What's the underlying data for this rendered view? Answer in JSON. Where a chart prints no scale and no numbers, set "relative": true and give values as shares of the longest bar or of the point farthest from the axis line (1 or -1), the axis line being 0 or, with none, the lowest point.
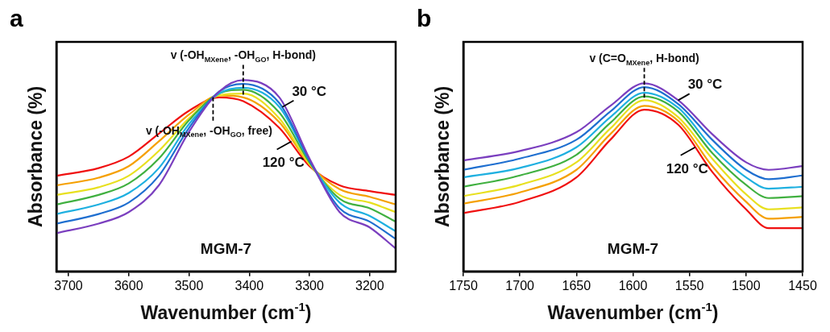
{
  "chart_data": [
    {
      "type": "line",
      "title": "a",
      "xlabel": "Wavenumber (cm$^{-1}$)",
      "ylabel": "Absorbance (%)",
      "relative": true,
      "grid": false,
      "legend": false,
      "marker": "none",
      "x": [
        3720,
        3650,
        3600,
        3550,
        3500,
        3450,
        3410,
        3350,
        3300,
        3250,
        3200,
        3157
      ],
      "xlim": [
        3720,
        3157
      ],
      "xticks": [
        3700,
        3600,
        3500,
        3400,
        3300,
        3200
      ],
      "series": [
        {
          "color": "#7b3fbf",
          "values": [
            0.2,
            0.25,
            0.31,
            0.45,
            0.73,
            0.94,
            1.0,
            0.91,
            0.59,
            0.31,
            0.23,
            0.12
          ]
        },
        {
          "color": "#1f6fd0",
          "values": [
            0.25,
            0.3,
            0.36,
            0.5,
            0.75,
            0.94,
            0.98,
            0.88,
            0.58,
            0.33,
            0.26,
            0.17
          ]
        },
        {
          "color": "#1fb0e0",
          "values": [
            0.3,
            0.35,
            0.41,
            0.54,
            0.77,
            0.93,
            0.96,
            0.86,
            0.58,
            0.36,
            0.29,
            0.21
          ]
        },
        {
          "color": "#40b040",
          "values": [
            0.35,
            0.4,
            0.46,
            0.59,
            0.79,
            0.93,
            0.95,
            0.83,
            0.57,
            0.38,
            0.33,
            0.26
          ]
        },
        {
          "color": "#e8e020",
          "values": [
            0.4,
            0.44,
            0.5,
            0.63,
            0.8,
            0.92,
            0.93,
            0.8,
            0.56,
            0.4,
            0.36,
            0.31
          ]
        },
        {
          "color": "#f5a000",
          "values": [
            0.45,
            0.49,
            0.55,
            0.68,
            0.82,
            0.92,
            0.91,
            0.78,
            0.56,
            0.43,
            0.39,
            0.35
          ]
        },
        {
          "color": "#f01010",
          "values": [
            0.5,
            0.54,
            0.6,
            0.72,
            0.84,
            0.91,
            0.89,
            0.75,
            0.55,
            0.45,
            0.42,
            0.4
          ]
        }
      ],
      "annotations": [
        {
          "text": "v (-OH$_{MXene}$, -OH$_{GO}$, H-bond)",
          "x": 3410,
          "y": 1.0
        },
        {
          "text": "v (-OH$_{MXene}$, -OH$_{GO}$, free)",
          "x": 3460,
          "y": 0.91
        },
        {
          "text": "30 °C",
          "x": 3345,
          "y": 0.86
        },
        {
          "text": "120 °C",
          "x": 3330,
          "y": 0.68
        },
        "MGM-7"
      ]
    },
    {
      "type": "line",
      "title": "b",
      "xlabel": "Wavenumber (cm$^{-1}$)",
      "ylabel": "Absorbance (%)",
      "relative": true,
      "grid": false,
      "legend": false,
      "marker": "none",
      "x": [
        1750,
        1700,
        1650,
        1620,
        1590,
        1560,
        1530,
        1500,
        1480,
        1450
      ],
      "xlim": [
        1750,
        1450
      ],
      "xticks": [
        1750,
        1700,
        1650,
        1600,
        1550,
        1500,
        1450
      ],
      "series": [
        {
          "color": "#7b3fbf",
          "values": [
            0.59,
            0.64,
            0.74,
            0.88,
            1.0,
            0.91,
            0.73,
            0.58,
            0.54,
            0.56
          ]
        },
        {
          "color": "#1f6fd0",
          "values": [
            0.54,
            0.6,
            0.7,
            0.85,
            0.98,
            0.89,
            0.7,
            0.54,
            0.49,
            0.51
          ]
        },
        {
          "color": "#1fb0e0",
          "values": [
            0.5,
            0.55,
            0.66,
            0.82,
            0.95,
            0.87,
            0.66,
            0.5,
            0.44,
            0.45
          ]
        },
        {
          "color": "#40b040",
          "values": [
            0.45,
            0.51,
            0.62,
            0.79,
            0.93,
            0.85,
            0.63,
            0.46,
            0.39,
            0.4
          ]
        },
        {
          "color": "#e8e020",
          "values": [
            0.4,
            0.46,
            0.58,
            0.76,
            0.91,
            0.82,
            0.6,
            0.41,
            0.33,
            0.34
          ]
        },
        {
          "color": "#f5a000",
          "values": [
            0.36,
            0.42,
            0.54,
            0.73,
            0.88,
            0.8,
            0.56,
            0.37,
            0.28,
            0.29
          ]
        },
        {
          "color": "#f01010",
          "values": [
            0.31,
            0.37,
            0.5,
            0.7,
            0.86,
            0.78,
            0.53,
            0.33,
            0.23,
            0.23
          ]
        }
      ],
      "annotations": [
        {
          "text": "v (C=O$_{MXene}$, H-bond)",
          "x": 1590,
          "y": 1.0
        },
        {
          "text": "30 °C",
          "x": 1560,
          "y": 0.91
        },
        {
          "text": "120 °C",
          "x": 1545,
          "y": 0.66
        },
        "MGM-7"
      ]
    }
  ]
}
